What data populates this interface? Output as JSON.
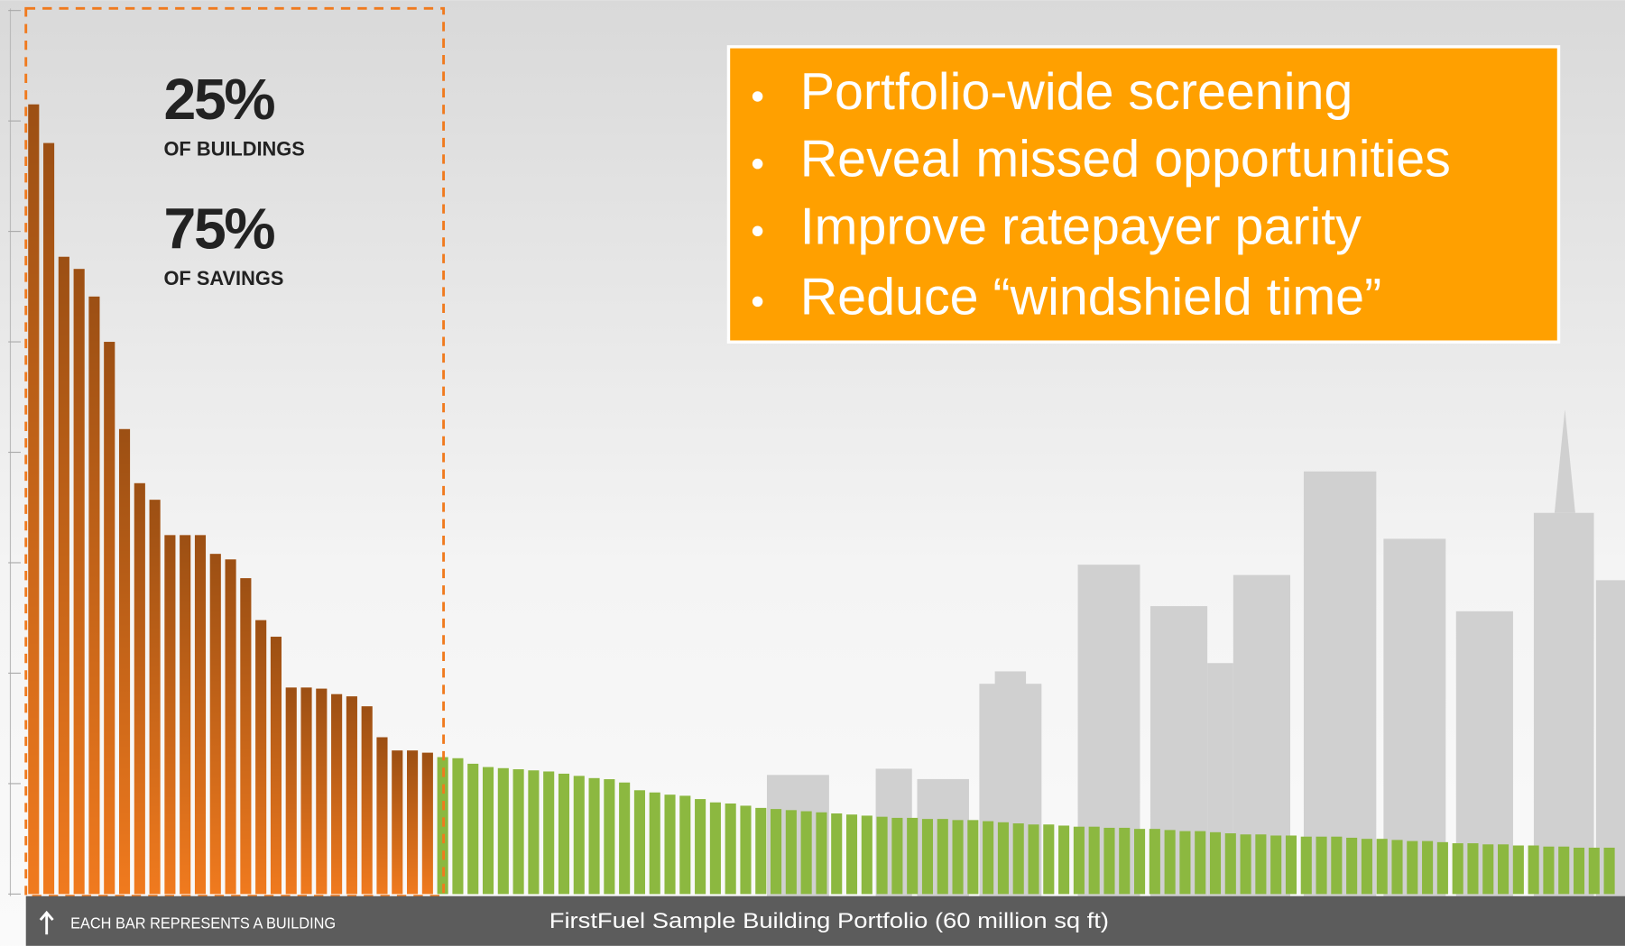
{
  "chart_data": {
    "type": "bar",
    "annotations": [
      "25%",
      "OF BUILDINGS",
      "75%",
      "OF SAVINGS"
    ],
    "bullets": [
      "Portfolio-wide screening",
      "Reveal missed opportunities",
      "Improve ratepayer parity",
      "Reduce “windshield time”"
    ],
    "x_label": "FirstFuel Sample Building Portfolio (60 million sq ft)",
    "note": "EACH BAR REPRESENTS A BUILDING",
    "ylim": [
      0,
      8
    ],
    "yticks": [
      0,
      1,
      2,
      3,
      4,
      5,
      6,
      7,
      8
    ],
    "series": [
      {
        "color": "#f07a1e",
        "values": [
          7.15,
          6.8,
          5.77,
          5.66,
          5.41,
          5.0,
          4.21,
          3.72,
          3.57,
          3.25,
          3.25,
          3.25,
          3.08,
          3.03,
          2.86,
          2.48,
          2.33,
          1.87,
          1.87,
          1.86,
          1.81,
          1.79,
          1.7,
          1.42,
          1.3,
          1.3,
          1.28
        ]
      },
      {
        "color": "#8cb840",
        "values": [
          1.24,
          1.23,
          1.18,
          1.15,
          1.14,
          1.13,
          1.12,
          1.11,
          1.09,
          1.07,
          1.05,
          1.04,
          1.01,
          0.94,
          0.92,
          0.9,
          0.89,
          0.86,
          0.83,
          0.82,
          0.8,
          0.78,
          0.77,
          0.76,
          0.75,
          0.74,
          0.73,
          0.72,
          0.71,
          0.7,
          0.69,
          0.69,
          0.68,
          0.68,
          0.67,
          0.67,
          0.66,
          0.65,
          0.64,
          0.63,
          0.63,
          0.62,
          0.61,
          0.61,
          0.6,
          0.6,
          0.59,
          0.59,
          0.58,
          0.57,
          0.57,
          0.56,
          0.55,
          0.54,
          0.54,
          0.53,
          0.53,
          0.52,
          0.52,
          0.52,
          0.51,
          0.5,
          0.5,
          0.49,
          0.48,
          0.48,
          0.47,
          0.46,
          0.46,
          0.45,
          0.45,
          0.44,
          0.44,
          0.43,
          0.43,
          0.42,
          0.42,
          0.42
        ]
      }
    ]
  }
}
